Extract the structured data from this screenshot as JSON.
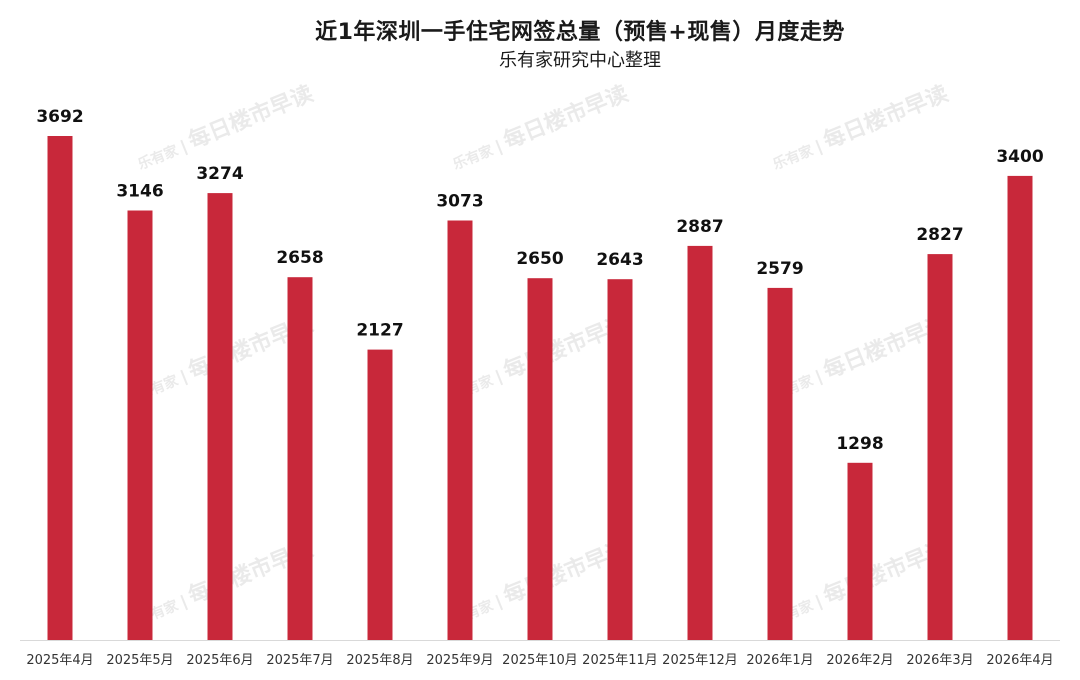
{
  "title": "近1年深圳一手住宅网签总量（预售+现售）月度走势",
  "subtitle": "乐有家研究中心整理",
  "watermark": {
    "brand": "乐有家",
    "text": "每日楼市早读"
  },
  "colors": {
    "bar": "#C8283A",
    "axis": "#d9d9d9",
    "label": "#111111",
    "tick": "#333333"
  },
  "chart_data": {
    "type": "bar",
    "title": "近1年深圳一手住宅网签总量（预售+现售）月度走势",
    "subtitle": "乐有家研究中心整理",
    "xlabel": "",
    "ylabel": "",
    "categories": [
      "2025年4月",
      "2025年5月",
      "2025年6月",
      "2025年7月",
      "2025年8月",
      "2025年9月",
      "2025年10月",
      "2025年11月",
      "2025年12月",
      "2026年1月",
      "2026年2月",
      "2026年3月",
      "2026年4月"
    ],
    "values": [
      3692,
      3146,
      3274,
      2658,
      2127,
      3073,
      2650,
      2643,
      2887,
      2579,
      1298,
      2827,
      3400
    ],
    "ylim": [
      0,
      3692
    ],
    "grid": false,
    "legend": "none",
    "data_labels": true
  }
}
